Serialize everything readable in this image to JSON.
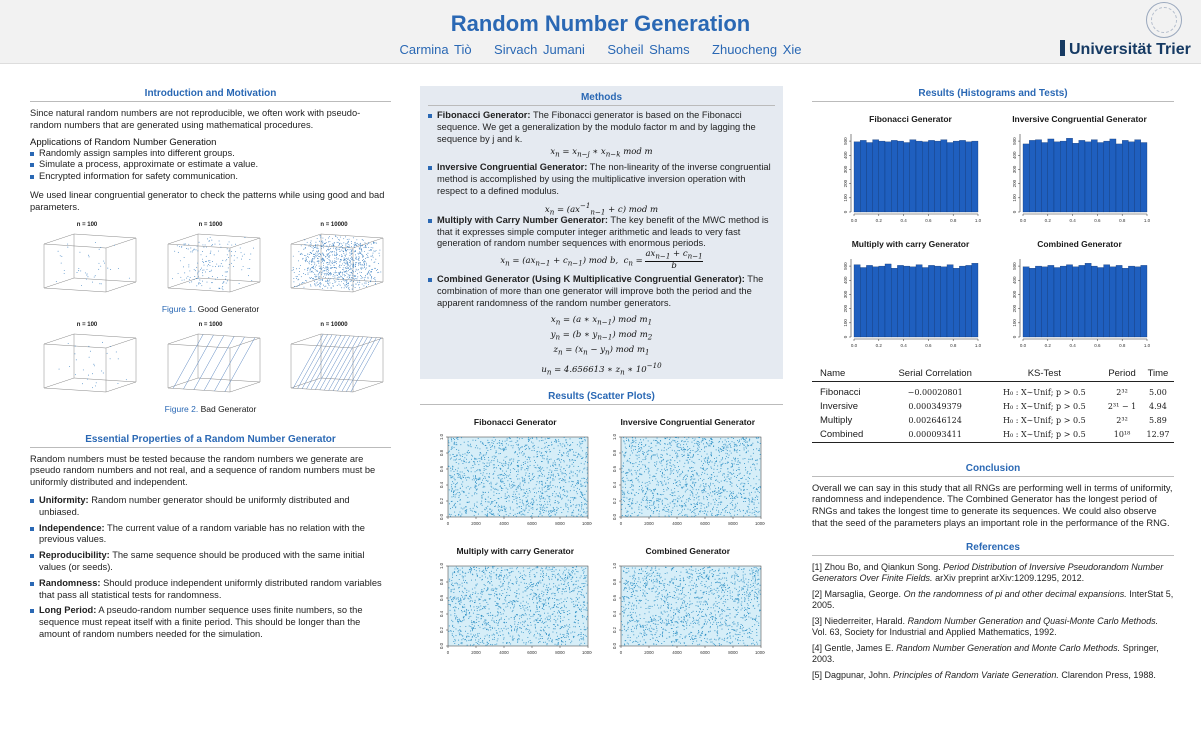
{
  "header": {
    "title": "Random Number Generation",
    "authors": [
      "Carmina Tiò",
      "Sirvach Jumani",
      "Soheil Shams",
      "Zhuocheng Xie"
    ],
    "university": "Universität Trier",
    "logo_icon": "university-seal-icon"
  },
  "intro": {
    "title": "Introduction and Motivation",
    "p1": "Since natural random numbers are not reproducible, we often work with pseudo-random numbers that are generated using mathematical procedures.",
    "apps_title": "Applications of Random Number Generation",
    "apps": [
      "Randomly assign samples into different groups.",
      "Simulate a process, approximate or estimate a value.",
      "Encrypted information for safety communication."
    ],
    "p2": "We used linear congruential generator to check the patterns while using good and bad parameters.",
    "good_caps": [
      "n = 100",
      "n = 1000",
      "n = 10000"
    ],
    "fig1_label": "Figure 1.",
    "fig1_text": "Good Generator",
    "bad_caps": [
      "n = 100",
      "n = 1000",
      "n = 10000"
    ],
    "fig2_label": "Figure 2.",
    "fig2_text": "Bad Generator"
  },
  "properties": {
    "title": "Essential Properties of a Random Number Generator",
    "intro": "Random numbers must be tested because the random numbers we generate are pseudo random numbers and not real, and a sequence of random numbers must be uniformly distributed and independent.",
    "items": [
      {
        "term": "Uniformity:",
        "text": "Random number generator should be uniformly distributed and unbiased."
      },
      {
        "term": "Independence:",
        "text": "The current value of a random variable has no relation with the previous values."
      },
      {
        "term": "Reproducibility:",
        "text": "The same sequence should be produced with the same initial values (or seeds)."
      },
      {
        "term": "Randomness:",
        "text": "Should produce independent uniformly distributed random variables that pass all statistical tests for randomness."
      },
      {
        "term": "Long Period:",
        "text": "A pseudo-random number sequence uses finite numbers, so the sequence must repeat itself with a finite period. This should be longer than the amount of random numbers needed for the simulation."
      }
    ]
  },
  "methods": {
    "title": "Methods",
    "fib_term": "Fibonacci Generator:",
    "fib_text": "The Fibonacci generator is based on the Fibonacci sequence. We get a generalization by the modulo factor m and by lagging the sequence by j and k.",
    "inv_term": "Inversive Congruential Generator:",
    "inv_text": "The non-linearity of the inverse congruential method is accomplished by using the multiplicative inversion operation with respect to a defined modulus.",
    "mwc_term": "Multiply with Carry Number Generator:",
    "mwc_text": "The key benefit of the MWC method is that it expresses simple computer integer arithmetic and leads to very fast generation of random number sequences with enormous periods.",
    "comb_term": "Combined Generator (Using K Multiplicative Congruential Generator):",
    "comb_text": "The combination of more than one generator will improve both the period and the apparent randomness of the random number generators."
  },
  "scatter": {
    "title": "Results (Scatter Plots)",
    "panels": [
      "Fibonacci Generator",
      "Inversive Congruential Generator",
      "Multiply with carry Generator",
      "Combined Generator"
    ],
    "xticks": [
      "0",
      "2000",
      "4000",
      "6000",
      "8000",
      "10000"
    ],
    "yticks": [
      "0.0",
      "0.2",
      "0.4",
      "0.6",
      "0.8",
      "1.0"
    ]
  },
  "histograms": {
    "title": "Results (Histograms and Tests)",
    "panels": [
      "Fibonacci Generator",
      "Inversive Congruential Generator",
      "Multiply with carry Generator",
      "Combined Generator"
    ],
    "xticks": [
      "0.0",
      "0.2",
      "0.4",
      "0.6",
      "0.8",
      "1.0"
    ],
    "yticks": [
      "0",
      "100",
      "200",
      "300",
      "400",
      "500"
    ]
  },
  "chart_data": [
    {
      "type": "bar",
      "title": "Fibonacci Generator",
      "x": [
        0.025,
        0.075,
        0.125,
        0.175,
        0.225,
        0.275,
        0.325,
        0.375,
        0.425,
        0.475,
        0.525,
        0.575,
        0.625,
        0.675,
        0.725,
        0.775,
        0.825,
        0.875,
        0.925,
        0.975
      ],
      "values": [
        495,
        505,
        490,
        510,
        500,
        495,
        505,
        500,
        490,
        510,
        500,
        495,
        505,
        500,
        510,
        490,
        500,
        505,
        495,
        500
      ],
      "ylim": [
        0,
        550
      ],
      "xlim": [
        0,
        1
      ]
    },
    {
      "type": "bar",
      "title": "Inversive Congruential Generator",
      "x": [
        0.025,
        0.075,
        0.125,
        0.175,
        0.225,
        0.275,
        0.325,
        0.375,
        0.425,
        0.475,
        0.525,
        0.575,
        0.625,
        0.675,
        0.725,
        0.775,
        0.825,
        0.875,
        0.925,
        0.975
      ],
      "values": [
        480,
        505,
        510,
        490,
        515,
        495,
        500,
        520,
        485,
        505,
        495,
        510,
        490,
        500,
        515,
        480,
        505,
        495,
        510,
        490
      ],
      "ylim": [
        0,
        550
      ],
      "xlim": [
        0,
        1
      ]
    },
    {
      "type": "bar",
      "title": "Multiply with carry Generator",
      "x": [
        0.025,
        0.075,
        0.125,
        0.175,
        0.225,
        0.275,
        0.325,
        0.375,
        0.425,
        0.475,
        0.525,
        0.575,
        0.625,
        0.675,
        0.725,
        0.775,
        0.825,
        0.875,
        0.925,
        0.975
      ],
      "values": [
        510,
        490,
        505,
        495,
        500,
        515,
        485,
        505,
        500,
        495,
        510,
        490,
        505,
        500,
        495,
        510,
        485,
        500,
        505,
        520
      ],
      "ylim": [
        0,
        550
      ],
      "xlim": [
        0,
        1
      ]
    },
    {
      "type": "bar",
      "title": "Combined Generator",
      "x": [
        0.025,
        0.075,
        0.125,
        0.175,
        0.225,
        0.275,
        0.325,
        0.375,
        0.425,
        0.475,
        0.525,
        0.575,
        0.625,
        0.675,
        0.725,
        0.775,
        0.825,
        0.875,
        0.925,
        0.975
      ],
      "values": [
        495,
        485,
        500,
        495,
        505,
        490,
        500,
        510,
        495,
        505,
        520,
        500,
        490,
        510,
        495,
        505,
        485,
        500,
        495,
        505
      ],
      "ylim": [
        0,
        550
      ],
      "xlim": [
        0,
        1
      ]
    }
  ],
  "table": {
    "headers": [
      "Name",
      "Serial Correlation",
      "KS-Test",
      "Period",
      "Time"
    ],
    "rows": [
      {
        "name": "Fibonacci",
        "corr": "−0.00020801",
        "ks": "H₀ : X∼Unif; p > 0.5",
        "period": "2³²",
        "time": "5.00"
      },
      {
        "name": "Inversive",
        "corr": "0.000349379",
        "ks": "H₀ : X∼Unif; p > 0.5",
        "period": "2³¹ − 1",
        "time": "4.94"
      },
      {
        "name": "Multiply",
        "corr": "0.002646124",
        "ks": "H₀ : X∼Unif; p > 0.5",
        "period": "2³²",
        "time": "5.89"
      },
      {
        "name": "Combined",
        "corr": "0.000093411",
        "ks": "H₀ : X∼Unif; p > 0.5",
        "period": "10¹⁸",
        "time": "12.97"
      }
    ]
  },
  "conclusion": {
    "title": "Conclusion",
    "text": "Overall we can say in this study that all RNGs are performing well in terms of uniformity, randomness and independence. The Combined Generator has the longest period of RNGs and takes the longest time to generate its sequences. We could also observe that the seed of the parameters plays an important role in the performance of the RNG."
  },
  "references": {
    "title": "References",
    "items": [
      {
        "pre": "[1] Zhou Bo, and Qiankun Song.",
        "em": "Period Distribution of Inversive Pseudorandom Number Generators Over Finite Fields.",
        "post": "arXiv preprint arXiv:1209.1295, 2012."
      },
      {
        "pre": "[2] Marsaglia, George.",
        "em": "On the randomness of pi and other decimal expansions.",
        "post": "InterStat 5, 2005."
      },
      {
        "pre": "[3] Niederreiter, Harald.",
        "em": "Random Number Generation and Quasi-Monte Carlo Methods.",
        "post": "Vol. 63, Society for Industrial and Applied Mathematics, 1992."
      },
      {
        "pre": "[4] Gentle, James E.",
        "em": "Random Number Generation and Monte Carlo Methods.",
        "post": "Springer, 2003."
      },
      {
        "pre": "[5] Dagpunar, John.",
        "em": "Principles of Random Variate Generation.",
        "post": "Clarendon Press, 1988."
      }
    ]
  }
}
